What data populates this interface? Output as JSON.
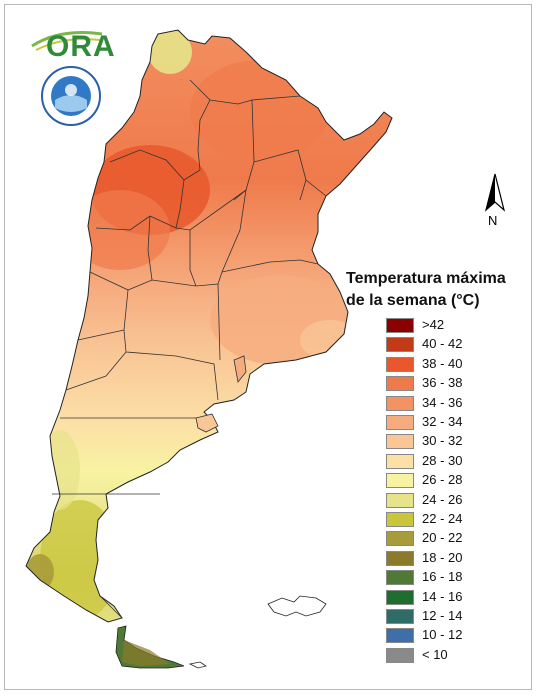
{
  "legend": {
    "title_line1": "Temperatura máxima",
    "title_line2": "de la semana (°C)",
    "items": [
      {
        "label": ">42",
        "color": "#8b0000"
      },
      {
        "label": "40 - 42",
        "color": "#c23a17"
      },
      {
        "label": "38 - 40",
        "color": "#e8582c"
      },
      {
        "label": "36 - 38",
        "color": "#ef7a4b"
      },
      {
        "label": "34 - 36",
        "color": "#f39263"
      },
      {
        "label": "32 - 34",
        "color": "#f6ac7f"
      },
      {
        "label": "30 - 32",
        "color": "#f9c696"
      },
      {
        "label": "28 - 30",
        "color": "#fce0a6"
      },
      {
        "label": "26 - 28",
        "color": "#f8f3a2"
      },
      {
        "label": "24 - 26",
        "color": "#e7e38a"
      },
      {
        "label": "22 - 24",
        "color": "#c9c63c"
      },
      {
        "label": "20 - 22",
        "color": "#a89b3a"
      },
      {
        "label": "18 - 20",
        "color": "#8c7a2c"
      },
      {
        "label": "16 - 18",
        "color": "#4e7a35"
      },
      {
        "label": "14 - 16",
        "color": "#1f6e2f"
      },
      {
        "label": "12 - 14",
        "color": "#2f6b67"
      },
      {
        "label": "10 - 12",
        "color": "#3f6fa8"
      },
      {
        "label": "< 10",
        "color": "#8a8a8a"
      }
    ]
  },
  "logo": {
    "text": "ORA"
  },
  "compass": {
    "label": "N"
  }
}
